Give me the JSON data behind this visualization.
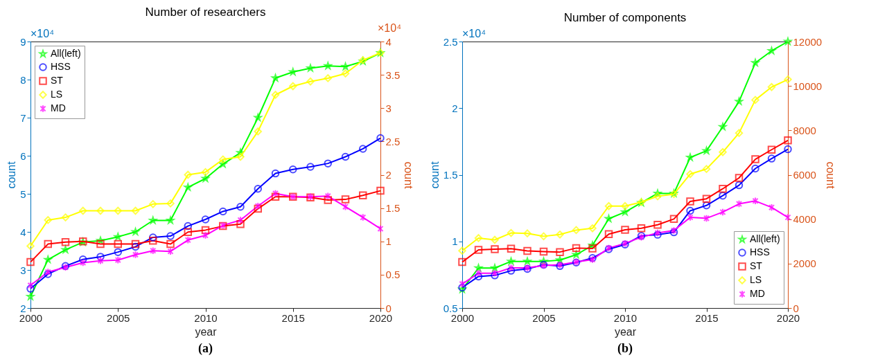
{
  "chart_data": [
    {
      "type": "line",
      "title": "Number of researchers",
      "xlabel": "year",
      "ylabel": "count",
      "y2label": "count",
      "x": [
        2000,
        2001,
        2002,
        2003,
        2004,
        2005,
        2006,
        2007,
        2008,
        2009,
        2010,
        2011,
        2012,
        2013,
        2014,
        2015,
        2016,
        2017,
        2018,
        2019,
        2020
      ],
      "xlim": [
        2000,
        2020
      ],
      "xticks": [
        2000,
        2005,
        2010,
        2015,
        2020
      ],
      "ylim": [
        2,
        9
      ],
      "yticks": [
        2,
        3,
        4,
        5,
        6,
        7,
        8,
        9
      ],
      "y2lim": [
        0,
        4
      ],
      "y2ticks": [
        0,
        0.5,
        1,
        1.5,
        2,
        2.5,
        3,
        3.5,
        4
      ],
      "legend": "top left",
      "annotations": [
        "×10⁴",
        "×10⁴",
        "(a)"
      ],
      "series": [
        {
          "name": "All(left)",
          "color": "#00ff00",
          "marker": "star",
          "values": [
            2.3,
            3.27,
            3.53,
            3.73,
            3.77,
            3.87,
            4.0,
            4.3,
            4.3,
            5.17,
            5.4,
            5.78,
            6.08,
            7.0,
            8.04,
            8.2,
            8.3,
            8.36,
            8.34,
            8.48,
            8.7
          ]
        },
        {
          "name": "HSS",
          "color": "#0000ff",
          "marker": "circle",
          "axis": "y2",
          "values": [
            0.29,
            0.51,
            0.63,
            0.73,
            0.77,
            0.84,
            0.92,
            1.06,
            1.08,
            1.23,
            1.33,
            1.45,
            1.52,
            1.79,
            2.02,
            2.08,
            2.12,
            2.17,
            2.27,
            2.39,
            2.55
          ]
        },
        {
          "name": "ST",
          "color": "#ff0000",
          "marker": "square",
          "axis": "y2",
          "values": [
            0.69,
            0.96,
            0.99,
            1.0,
            0.96,
            0.96,
            0.96,
            1.01,
            0.96,
            1.14,
            1.17,
            1.23,
            1.26,
            1.49,
            1.67,
            1.67,
            1.66,
            1.62,
            1.63,
            1.69,
            1.76
          ]
        },
        {
          "name": "LS",
          "color": "#ffff00",
          "marker": "diamond",
          "axis": "y2",
          "values": [
            0.93,
            1.32,
            1.36,
            1.46,
            1.46,
            1.46,
            1.46,
            1.56,
            1.57,
            2.0,
            2.04,
            2.23,
            2.27,
            2.65,
            3.2,
            3.33,
            3.4,
            3.45,
            3.52,
            3.72,
            3.83
          ]
        },
        {
          "name": "MD",
          "color": "#ff00ff",
          "marker": "cross",
          "axis": "y2",
          "values": [
            0.34,
            0.54,
            0.61,
            0.68,
            0.71,
            0.72,
            0.8,
            0.86,
            0.85,
            1.02,
            1.09,
            1.24,
            1.32,
            1.53,
            1.72,
            1.67,
            1.67,
            1.68,
            1.52,
            1.36,
            1.19
          ]
        }
      ]
    },
    {
      "type": "line",
      "title": "Number of components",
      "xlabel": "year",
      "ylabel": "count",
      "y2label": "count",
      "x": [
        2000,
        2001,
        2002,
        2003,
        2004,
        2005,
        2006,
        2007,
        2008,
        2009,
        2010,
        2011,
        2012,
        2013,
        2014,
        2015,
        2016,
        2017,
        2018,
        2019,
        2020
      ],
      "xlim": [
        2000,
        2020
      ],
      "xticks": [
        2000,
        2005,
        2010,
        2015,
        2020
      ],
      "ylim": [
        0.5,
        2.5
      ],
      "yticks": [
        0.5,
        1,
        1.5,
        2,
        2.5
      ],
      "y2lim": [
        0,
        12000
      ],
      "y2ticks": [
        0,
        2000,
        4000,
        6000,
        8000,
        10000,
        12000
      ],
      "legend": "bottom right",
      "annotations": [
        "×10⁴",
        "(b)"
      ],
      "series": [
        {
          "name": "All(left)",
          "color": "#00ff00",
          "marker": "star",
          "values": [
            0.64,
            0.8,
            0.8,
            0.85,
            0.85,
            0.85,
            0.86,
            0.9,
            0.97,
            1.17,
            1.22,
            1.29,
            1.36,
            1.36,
            1.63,
            1.68,
            1.86,
            2.05,
            2.34,
            2.43,
            2.5
          ]
        },
        {
          "name": "HSS",
          "color": "#0000ff",
          "marker": "circle",
          "axis": "y2",
          "values": [
            920,
            1420,
            1470,
            1680,
            1760,
            1950,
            1890,
            2050,
            2250,
            2650,
            2860,
            3250,
            3300,
            3410,
            4380,
            4620,
            5060,
            5530,
            6280,
            6730,
            7150
          ]
        },
        {
          "name": "ST",
          "color": "#ff0000",
          "marker": "square",
          "axis": "y2",
          "values": [
            2070,
            2620,
            2650,
            2670,
            2570,
            2540,
            2520,
            2700,
            2680,
            3330,
            3520,
            3590,
            3750,
            4010,
            4800,
            4920,
            5370,
            5860,
            6700,
            7130,
            7550
          ]
        },
        {
          "name": "LS",
          "color": "#ffff00",
          "marker": "diamond",
          "axis": "y2",
          "values": [
            2580,
            3150,
            3070,
            3380,
            3360,
            3230,
            3310,
            3510,
            3590,
            4590,
            4590,
            4770,
            5030,
            5130,
            6030,
            6260,
            7020,
            7880,
            9370,
            9950,
            10290
          ]
        },
        {
          "name": "MD",
          "color": "#ff00ff",
          "marker": "cross",
          "axis": "y2",
          "values": [
            1080,
            1570,
            1570,
            1810,
            1810,
            1920,
            1950,
            2070,
            2180,
            2700,
            2910,
            3190,
            3380,
            3490,
            4080,
            4040,
            4320,
            4690,
            4820,
            4530,
            4080
          ]
        }
      ]
    }
  ]
}
